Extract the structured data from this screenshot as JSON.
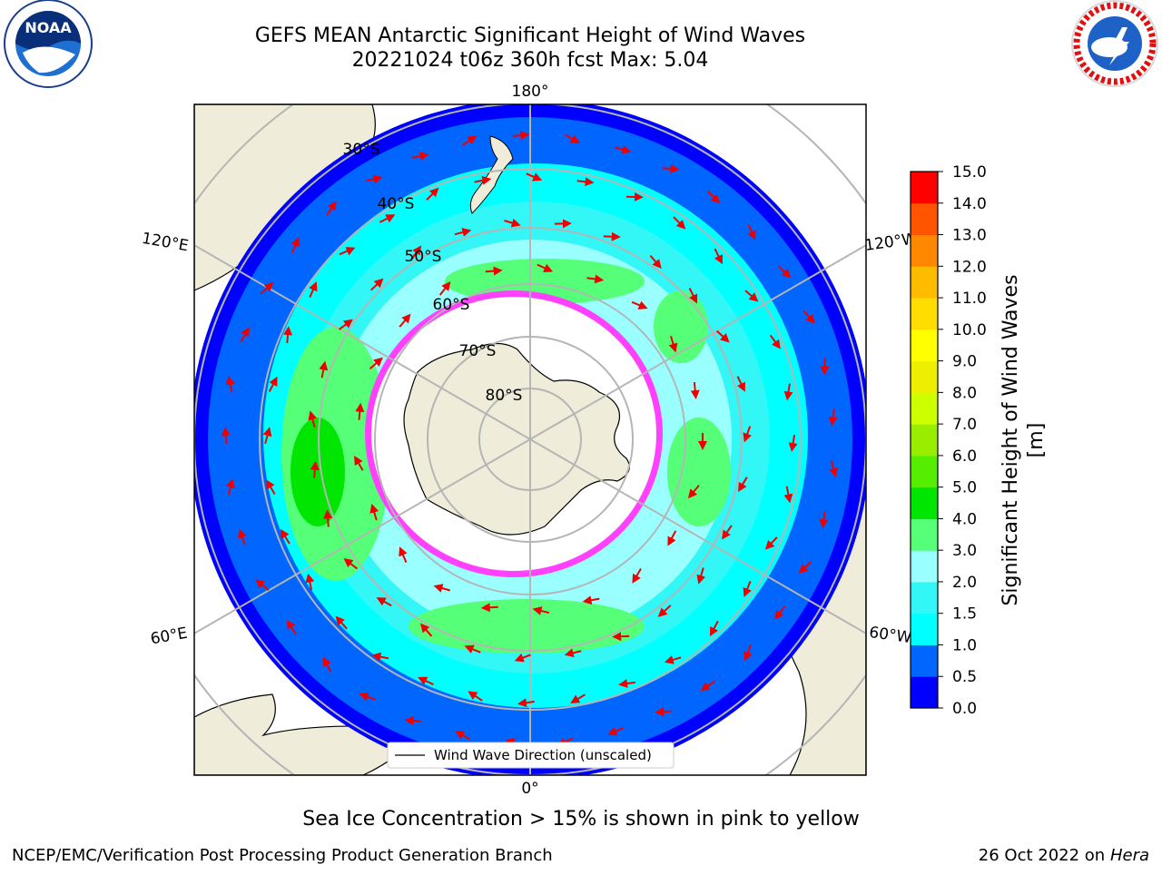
{
  "header": {
    "title_line1": "GEFS MEAN Antarctic Significant Height of Wind Waves",
    "title_line2": "20221024 t06z 360h fcst   Max: 5.04"
  },
  "logos": {
    "left": "NOAA",
    "right": "NATIONAL WEATHER SERVICE"
  },
  "map": {
    "projection": "south-polar-stereographic",
    "longitude_labels": [
      "180°",
      "120°E",
      "120°W",
      "60°E",
      "60°W",
      "0°"
    ],
    "latitude_labels": [
      "30°S",
      "40°S",
      "50°S",
      "60°S",
      "70°S",
      "80°S"
    ],
    "legend_label": "Wind Wave Direction (unscaled)",
    "colors": {
      "land": "#efedd9",
      "ice_shelf": "#ffffff",
      "sea_ice": "#ff40ff",
      "arrow": "#ee0000",
      "grid": "#b5b5b5"
    }
  },
  "colorbar": {
    "label": "Significant Height of Wind Waves [m]",
    "ticks": [
      "0.0",
      "0.5",
      "1.0",
      "1.5",
      "2.0",
      "3.0",
      "4.0",
      "5.0",
      "6.0",
      "7.0",
      "8.0",
      "9.0",
      "10.0",
      "11.0",
      "12.0",
      "13.0",
      "14.0",
      "15.0"
    ],
    "colors": [
      "#0000ff",
      "#0066ff",
      "#00ffff",
      "#33f6f6",
      "#99ffff",
      "#55ff77",
      "#00e600",
      "#55ee00",
      "#99ee00",
      "#ccff00",
      "#eeee00",
      "#ffff00",
      "#ffdd00",
      "#ffbb00",
      "#ff8800",
      "#ff5500",
      "#ff0000"
    ]
  },
  "caption": "Sea Ice Concentration > 15% is shown in pink to yellow",
  "footer": {
    "left": "NCEP/EMC/Verification Post Processing Product Generation Branch",
    "right_prefix": "26 Oct 2022 on ",
    "right_host": "Hera"
  }
}
